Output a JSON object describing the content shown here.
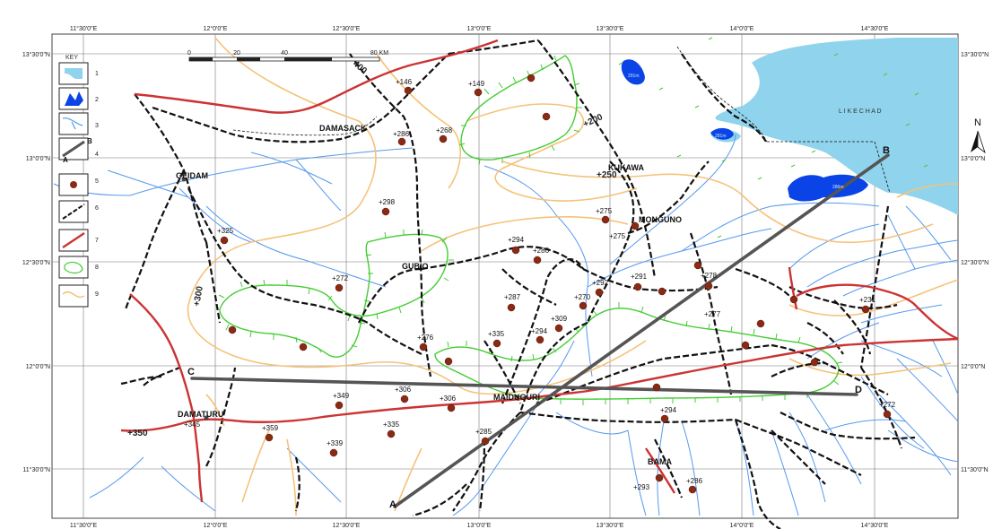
{
  "coords": {
    "top_lon": [
      "11°30'0\"E",
      "12°0'0\"E",
      "12°30'0\"E",
      "13°0'0\"E",
      "13°30'0\"E",
      "14°0'0\"E",
      "14°30'0\"E"
    ],
    "bottom_lon": [
      "11°30'0\"E",
      "12°0'0\"E",
      "12°30'0\"E",
      "13°0'0\"E",
      "13°30'0\"E",
      "14°0'0\"E",
      "14°30'0\"E"
    ],
    "left_lat": [
      "13°30'0\"N",
      "13°0'0\"N",
      "12°30'0\"N",
      "12°0'0\"N",
      "11°30'0\"N"
    ],
    "right_lat": [
      "13°30'0\"N",
      "13°0'0\"N",
      "12°30'0\"N",
      "12°0'0\"N",
      "11°30'0\"N"
    ]
  },
  "key": {
    "title": "KEY",
    "items": [
      "1",
      "2",
      "3",
      "4",
      "5",
      "6",
      "7",
      "8",
      "9"
    ],
    "profile_a": "A",
    "profile_b": "B"
  },
  "scalebar": {
    "ticks": [
      "0",
      "20",
      "40",
      "80 KM"
    ]
  },
  "north": "N",
  "lake_label": "L I K E  C H A D",
  "towns": [
    "DAMASACK",
    "GEIDAM",
    "KUKAWA",
    "MONGUNO",
    "GUBIO",
    "MAIDUGURI",
    "DAMATURU",
    "BAMA"
  ],
  "contours": [
    "+200",
    "+250",
    "+300",
    "+350"
  ],
  "contour_400": "400",
  "profile_labels": [
    "A",
    "B",
    "C",
    "D"
  ],
  "spot_values": [
    "+146",
    "+149",
    "+286",
    "+268",
    "+298",
    "+325",
    "+272",
    "+294",
    "+286",
    "+275",
    "+275",
    "+291",
    "+292",
    "+270",
    "+287",
    "+278",
    "+277",
    "+231",
    "+309",
    "+294",
    "+335",
    "+276",
    "+306",
    "+306",
    "+349",
    "+345",
    "+359",
    "+339",
    "+335",
    "+285",
    "+294",
    "+272",
    "+293",
    "+286"
  ],
  "lake_values": [
    "291m",
    "281m",
    "286m"
  ],
  "colors": {
    "road": "#cc3333",
    "divide": "#33cc33",
    "contour": "#f5c27a",
    "water": "#5599ee",
    "lake": "#8fd3ec",
    "lake_dark": "#0a44e6",
    "profile": "#555555",
    "spot": "#8b2a14"
  }
}
